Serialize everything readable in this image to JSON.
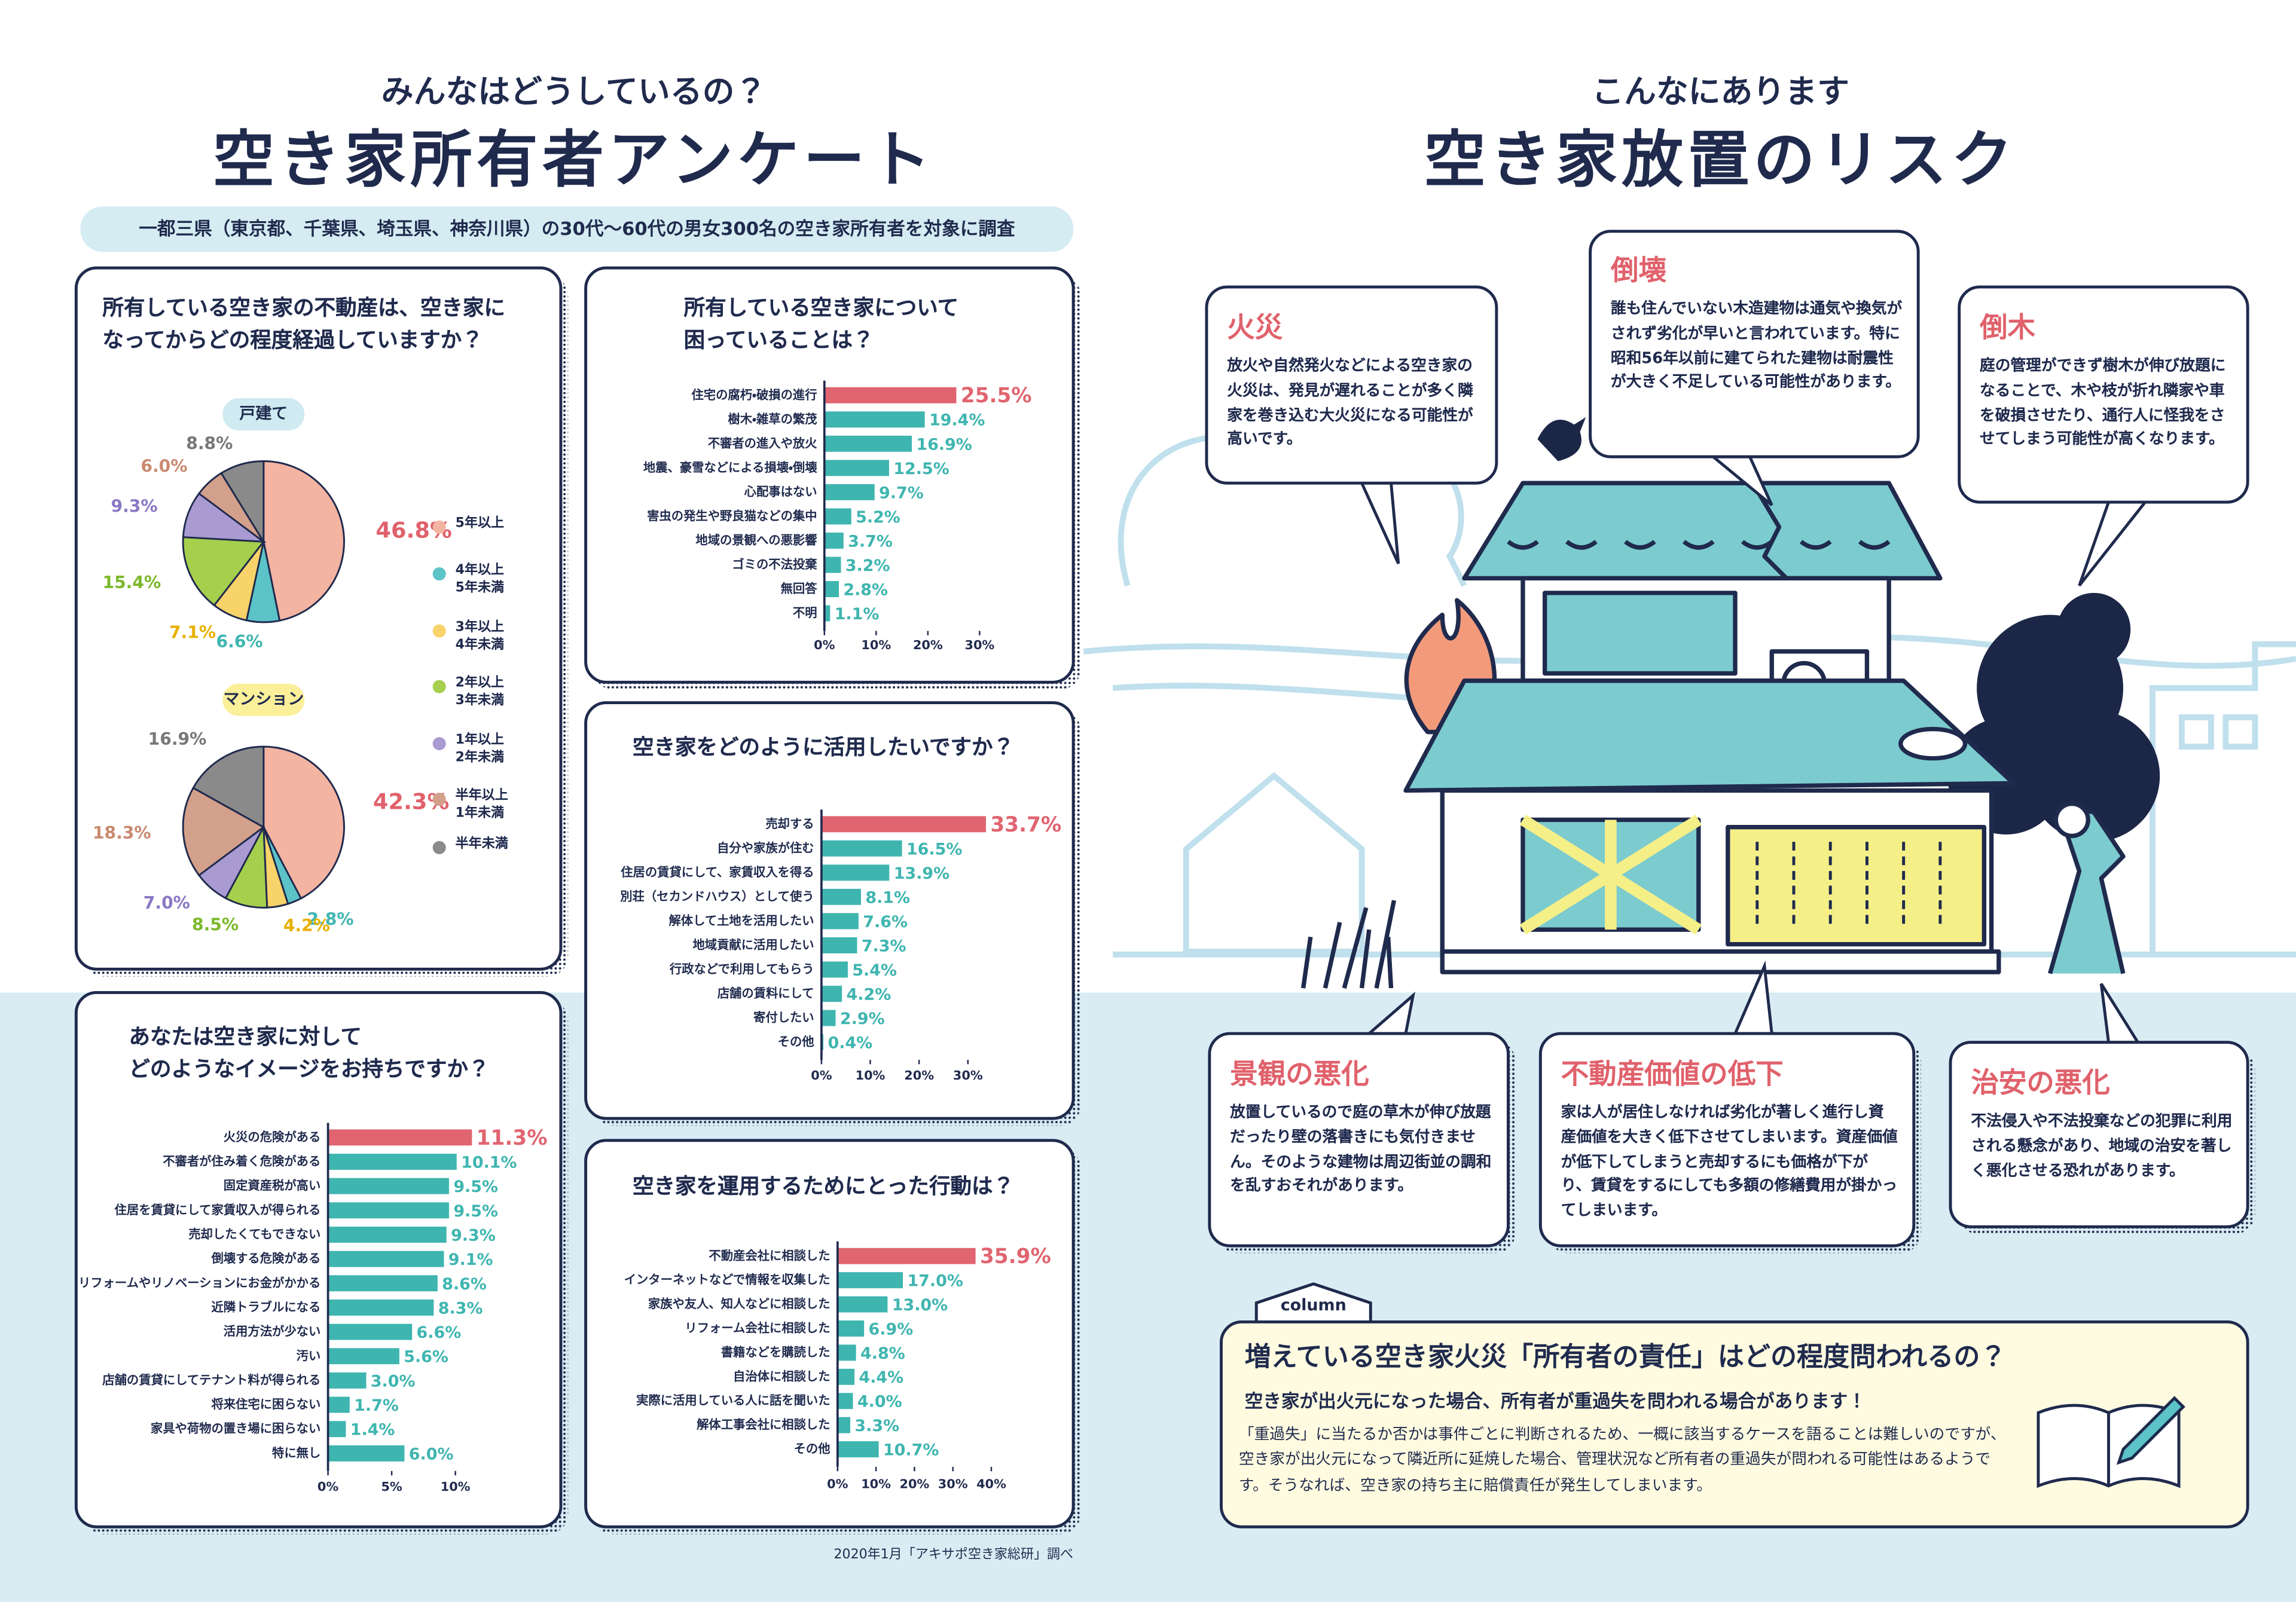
{
  "survey": {
    "kicker": "みんなはどうしているの？",
    "title": "空き家所有者アンケート",
    "subtitle": "一都三県（東京都、千葉県、埼玉県、神奈川県）の30代～60代の男女300名の空き家所有者を対象に調査",
    "source": "2020年1月「アキサポ空き家総研」調べ"
  },
  "chart_data": [
    {
      "type": "pie",
      "question": "所有している空き家の不動産は、空き家に\nなってからどの程度経過していますか？",
      "categories": [
        "5年以上",
        "4年以上\n5年未満",
        "3年以上\n4年未満",
        "2年以上\n3年未満",
        "1年以上\n2年未満",
        "半年以上\n1年未満",
        "半年未満"
      ],
      "colors": [
        "#f4b4a2",
        "#5cc3c8",
        "#f8d36a",
        "#a5cf4d",
        "#a99ad2",
        "#d3a08b",
        "#8a8a8a"
      ],
      "label_colors": [
        "#e0616b",
        "#3fb5b0",
        "#e8b000",
        "#7cb82a",
        "#8a78c4",
        "#c98a70",
        "#777777"
      ],
      "series": [
        {
          "name": "戸建て",
          "values": [
            46.8,
            6.6,
            7.1,
            15.4,
            9.3,
            6.0,
            8.8
          ],
          "value_labels": [
            "46.8%",
            "6.6%",
            "7.1%",
            "15.4%",
            "9.3%",
            "6.0%",
            "8.8%"
          ]
        },
        {
          "name": "マンション",
          "values": [
            42.3,
            2.8,
            4.2,
            8.5,
            7.0,
            18.3,
            16.9
          ],
          "value_labels": [
            "42.3%",
            "2.8%",
            "4.2%",
            "8.5%",
            "7.0%",
            "18.3%",
            "16.9%"
          ]
        }
      ]
    },
    {
      "type": "bar",
      "orientation": "horizontal",
      "question": "所有している空き家について\n困っていることは？",
      "categories": [
        "住宅の腐朽・破損の進行",
        "樹木・雑草の繁茂",
        "不審者の進入や放火",
        "地震、豪雪などによる損壊・倒壊",
        "心配事はない",
        "害虫の発生や野良猫などの集中",
        "地域の景観への悪影響",
        "ゴミの不法投棄",
        "無回答",
        "不明"
      ],
      "values": [
        25.5,
        19.4,
        16.9,
        12.5,
        9.7,
        5.2,
        3.7,
        3.2,
        2.8,
        1.1
      ],
      "value_labels": [
        "25.5%",
        "19.4%",
        "16.9%",
        "12.5%",
        "9.7%",
        "5.2%",
        "3.7%",
        "3.2%",
        "2.8%",
        "1.1%"
      ],
      "color": "#3fb5b0",
      "highlight_color": "#e06570",
      "xlim": [
        0,
        30
      ],
      "xticks": [
        {
          "value": 0,
          "label": "0%"
        },
        {
          "value": 10,
          "label": "10%"
        },
        {
          "value": 20,
          "label": "20%"
        },
        {
          "value": 30,
          "label": "30%"
        }
      ]
    },
    {
      "type": "bar",
      "orientation": "horizontal",
      "question": "空き家をどのように活用したいですか？",
      "categories": [
        "売却する",
        "自分や家族が住む",
        "住居の賃貸にして、家賃収入を得る",
        "別荘（セカンドハウス）として使う",
        "解体して土地を活用したい",
        "地域貢献に活用したい",
        "行政などで利用してもらう",
        "店舗の賃料にして",
        "寄付したい",
        "その他"
      ],
      "values": [
        33.7,
        16.5,
        13.9,
        8.1,
        7.6,
        7.3,
        5.4,
        4.2,
        2.9,
        0.4
      ],
      "value_labels": [
        "33.7%",
        "16.5%",
        "13.9%",
        "8.1%",
        "7.6%",
        "7.3%",
        "5.4%",
        "4.2%",
        "2.9%",
        "0.4%"
      ],
      "color": "#3fb5b0",
      "highlight_color": "#e06570",
      "xlim": [
        0,
        30
      ],
      "xticks": [
        {
          "value": 0,
          "label": "0%"
        },
        {
          "value": 10,
          "label": "10%"
        },
        {
          "value": 20,
          "label": "20%"
        },
        {
          "value": 30,
          "label": "30%"
        }
      ]
    },
    {
      "type": "bar",
      "orientation": "horizontal",
      "question": "あなたは空き家に対して\nどのようなイメージをお持ちですか？",
      "categories": [
        "火災の危険がある",
        "不審者が住み着く危険がある",
        "固定資産税が高い",
        "住居を賃貸にして家賃収入が得られる",
        "売却したくてもできない",
        "倒壊する危険がある",
        "リフォームやリノベーションにお金がかかる",
        "近隣トラブルになる",
        "活用方法が少ない",
        "汚い",
        "店舗の賃貸にしてテナント料が得られる",
        "将来住宅に困らない",
        "家具や荷物の置き場に困らない",
        "特に無し"
      ],
      "values": [
        11.3,
        10.1,
        9.5,
        9.5,
        9.3,
        9.1,
        8.6,
        8.3,
        6.6,
        5.6,
        3.0,
        1.7,
        1.4,
        6.0
      ],
      "value_labels": [
        "11.3%",
        "10.1%",
        "9.5%",
        "9.5%",
        "9.3%",
        "9.1%",
        "8.6%",
        "8.3%",
        "6.6%",
        "5.6%",
        "3.0%",
        "1.7%",
        "1.4%",
        "6.0%"
      ],
      "color": "#3fb5b0",
      "highlight_color": "#e06570",
      "xlim": [
        0,
        10
      ],
      "xticks": [
        {
          "value": 0,
          "label": "0%"
        },
        {
          "value": 5,
          "label": "5%"
        },
        {
          "value": 10,
          "label": "10%"
        }
      ]
    },
    {
      "type": "bar",
      "orientation": "horizontal",
      "question": "空き家を運用するためにとった行動は？",
      "categories": [
        "不動産会社に相談した",
        "インターネットなどで情報を収集した",
        "家族や友人、知人などに相談した",
        "リフォーム会社に相談した",
        "書籍などを購読した",
        "自治体に相談した",
        "実際に活用している人に話を聞いた",
        "解体工事会社に相談した",
        "その他"
      ],
      "values": [
        35.9,
        17.0,
        13.0,
        6.9,
        4.8,
        4.4,
        4.0,
        3.3,
        10.7
      ],
      "value_labels": [
        "35.9%",
        "17.0%",
        "13.0%",
        "6.9%",
        "4.8%",
        "4.4%",
        "4.0%",
        "3.3%",
        "10.7%"
      ],
      "color": "#3fb5b0",
      "highlight_color": "#e06570",
      "xlim": [
        0,
        40
      ],
      "xticks": [
        {
          "value": 0,
          "label": "0%"
        },
        {
          "value": 10,
          "label": "10%"
        },
        {
          "value": 20,
          "label": "20%"
        },
        {
          "value": 30,
          "label": "30%"
        },
        {
          "value": 40,
          "label": "40%"
        }
      ]
    }
  ],
  "risks": {
    "kicker": "こんなにあります",
    "title": "空き家放置のリスク",
    "items": [
      {
        "title": "火災",
        "text": "放火や自然発火などによる空き家の火災は、発見が遅れることが多く隣家を巻き込む大火災になる可能性が高いです。"
      },
      {
        "title": "倒壊",
        "text": "誰も住んでいない木造建物は通気や換気がされず劣化が早いと言われています。特に昭和56年以前に建てられた建物は耐震性が大きく不足している可能性があります。"
      },
      {
        "title": "倒木",
        "text": "庭の管理ができず樹木が伸び放題になることで、木や枝が折れ隣家や車を破損させたり、通行人に怪我をさせてしまう可能性が高くなります。"
      },
      {
        "title": "景観の悪化",
        "text": "放置しているので庭の草木が伸び放題だったり壁の落書きにも気付きません。そのような建物は周辺街並の調和を乱すおそれがあります。"
      },
      {
        "title": "不動産価値の低下",
        "text": "家は人が居住しなければ劣化が著しく進行し資産価値を大きく低下させてしまいます。資産価値が低下してしまうと売却するにも価格が下がり、賃貸をするにしても多額の修繕費用が掛かってしまいます。"
      },
      {
        "title": "治安の悪化",
        "text": "不法侵入や不法投棄などの犯罪に利用される懸念があり、地域の治安を著しく悪化させる恐れがあります。"
      }
    ]
  },
  "column": {
    "tag": "column",
    "title": "増えている空き家火災「所有者の責任」はどの程度問われるの？",
    "lead": "空き家が出火元になった場合、所有者が重過失を問われる場合があります！",
    "body": "「重過失」に当たるか否かは事件ごとに判断されるため、一概に該当するケースを語ることは難しいのですが、空き家が出火元になって隣近所に延焼した場合、管理状況など所有者の重過失が問われる可能性はあるようです。そうなれば、空き家の持ち主に賠償責任が発生してしまいます。"
  }
}
